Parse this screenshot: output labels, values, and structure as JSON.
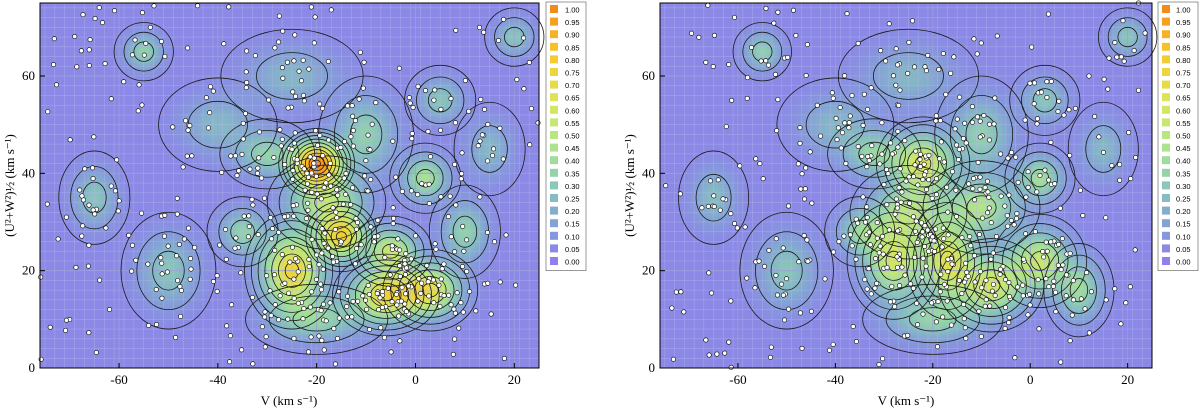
{
  "chart_data": [
    {
      "type": "heatmap",
      "panel": "left",
      "xlabel": "V (km s⁻¹)",
      "ylabel": "(U²+W²)½ (km s⁻¹)",
      "xlim": [
        -76,
        25
      ],
      "ylim": [
        0,
        75
      ],
      "x_ticks": [
        -60,
        -40,
        -20,
        0,
        20
      ],
      "y_ticks": [
        0,
        20,
        40,
        60
      ],
      "grid": true,
      "colorbar": {
        "levels": [
          "1.00",
          "0.95",
          "0.90",
          "0.85",
          "0.80",
          "0.75",
          "0.70",
          "0.65",
          "0.60",
          "0.55",
          "0.50",
          "0.45",
          "0.40",
          "0.35",
          "0.30",
          "0.25",
          "0.20",
          "0.15",
          "0.10",
          "0.05",
          "0.00"
        ],
        "colors": [
          "#f28a1c",
          "#f5a020",
          "#f6b226",
          "#f5c22c",
          "#f1cc33",
          "#ecd63c",
          "#e6dc48",
          "#dde256",
          "#d2e664",
          "#c6e872",
          "#b9e680",
          "#ade28f",
          "#a0dc9d",
          "#95d3ab",
          "#8cc8b7",
          "#86bcc2",
          "#84afcc",
          "#84a2d6",
          "#8796de",
          "#8b8ae5",
          "#8f80eb"
        ]
      },
      "density_peaks": [
        {
          "v": -20,
          "w": 42,
          "amplitude": 0.95,
          "sigma_v": 3.2,
          "sigma_w": 3.0
        },
        {
          "v": -25,
          "w": 20,
          "amplitude": 0.72,
          "sigma_v": 4.0,
          "sigma_w": 5.0
        },
        {
          "v": -15,
          "w": 27,
          "amplitude": 0.65,
          "sigma_v": 3.0,
          "sigma_w": 3.0
        },
        {
          "v": -6,
          "w": 15,
          "amplitude": 0.68,
          "sigma_v": 4.5,
          "sigma_w": 3.5
        },
        {
          "v": 3,
          "w": 16,
          "amplitude": 0.6,
          "sigma_v": 4.0,
          "sigma_w": 3.5
        },
        {
          "v": 2,
          "w": 39,
          "amplitude": 0.4,
          "sigma_v": 3.0,
          "sigma_w": 3.0
        },
        {
          "v": -5,
          "w": 24,
          "amplitude": 0.5,
          "sigma_v": 3.5,
          "sigma_w": 3.0
        },
        {
          "v": -18,
          "w": 34,
          "amplitude": 0.45,
          "sigma_v": 5.0,
          "sigma_w": 4.0
        },
        {
          "v": -30,
          "w": 44,
          "amplitude": 0.3,
          "sigma_v": 4.0,
          "sigma_w": 3.0
        },
        {
          "v": -10,
          "w": 48,
          "amplitude": 0.3,
          "sigma_v": 4.0,
          "sigma_w": 5.0
        },
        {
          "v": -35,
          "w": 28,
          "amplitude": 0.3,
          "sigma_v": 3.0,
          "sigma_w": 3.0
        },
        {
          "v": -55,
          "w": 65,
          "amplitude": 0.3,
          "sigma_v": 2.5,
          "sigma_w": 2.5
        },
        {
          "v": -65,
          "w": 35,
          "amplitude": 0.25,
          "sigma_v": 3.0,
          "sigma_w": 4.0
        },
        {
          "v": -50,
          "w": 20,
          "amplitude": 0.25,
          "sigma_v": 4.0,
          "sigma_w": 5.0
        },
        {
          "v": -20,
          "w": 10,
          "amplitude": 0.3,
          "sigma_v": 6.0,
          "sigma_w": 3.0
        },
        {
          "v": 10,
          "w": 28,
          "amplitude": 0.3,
          "sigma_v": 3.0,
          "sigma_w": 4.0
        },
        {
          "v": -40,
          "w": 50,
          "amplitude": 0.2,
          "sigma_v": 5.0,
          "sigma_w": 4.0
        },
        {
          "v": 5,
          "w": 55,
          "amplitude": 0.25,
          "sigma_v": 3.0,
          "sigma_w": 3.0
        },
        {
          "v": -25,
          "w": 60,
          "amplitude": 0.2,
          "sigma_v": 6.0,
          "sigma_w": 4.0
        },
        {
          "v": 15,
          "w": 45,
          "amplitude": 0.2,
          "sigma_v": 3.0,
          "sigma_w": 4.0
        },
        {
          "v": 20,
          "w": 68,
          "amplitude": 0.25,
          "sigma_v": 2.5,
          "sigma_w": 2.5
        }
      ]
    },
    {
      "type": "heatmap",
      "panel": "right",
      "xlabel": "V (km s⁻¹)",
      "ylabel": "(U²+W²)½ (km s⁻¹)",
      "xlim": [
        -76,
        25
      ],
      "ylim": [
        0,
        75
      ],
      "x_ticks": [
        -60,
        -40,
        -20,
        0,
        20
      ],
      "y_ticks": [
        0,
        20,
        40,
        60
      ],
      "grid": true,
      "colorbar": {
        "levels": [
          "1.00",
          "0.95",
          "0.90",
          "0.85",
          "0.80",
          "0.75",
          "0.70",
          "0.65",
          "0.60",
          "0.55",
          "0.50",
          "0.45",
          "0.40",
          "0.35",
          "0.30",
          "0.25",
          "0.20",
          "0.15",
          "0.10",
          "0.05",
          "0.00"
        ],
        "colors": [
          "#f28a1c",
          "#f5a020",
          "#f6b226",
          "#f5c22c",
          "#f1cc33",
          "#ecd63c",
          "#e6dc48",
          "#dde256",
          "#d2e664",
          "#c6e872",
          "#b9e680",
          "#ade28f",
          "#a0dc9d",
          "#95d3ab",
          "#8cc8b7",
          "#86bcc2",
          "#84afcc",
          "#84a2d6",
          "#8796de",
          "#8b8ae5",
          "#8f80eb"
        ]
      },
      "density_peaks": [
        {
          "v": -22,
          "w": 42,
          "amplitude": 0.58,
          "sigma_v": 4.0,
          "sigma_w": 4.0
        },
        {
          "v": -28,
          "w": 22,
          "amplitude": 0.55,
          "sigma_v": 4.0,
          "sigma_w": 5.0
        },
        {
          "v": -17,
          "w": 22,
          "amplitude": 0.58,
          "sigma_v": 3.5,
          "sigma_w": 5.0
        },
        {
          "v": -8,
          "w": 17,
          "amplitude": 0.55,
          "sigma_v": 4.5,
          "sigma_w": 4.0
        },
        {
          "v": 2,
          "w": 22,
          "amplitude": 0.5,
          "sigma_v": 4.0,
          "sigma_w": 4.0
        },
        {
          "v": 2,
          "w": 39,
          "amplitude": 0.38,
          "sigma_v": 3.0,
          "sigma_w": 3.0
        },
        {
          "v": -10,
          "w": 33,
          "amplitude": 0.42,
          "sigma_v": 5.0,
          "sigma_w": 4.0
        },
        {
          "v": -25,
          "w": 32,
          "amplitude": 0.4,
          "sigma_v": 5.0,
          "sigma_w": 4.0
        },
        {
          "v": -32,
          "w": 44,
          "amplitude": 0.3,
          "sigma_v": 4.0,
          "sigma_w": 3.0
        },
        {
          "v": -10,
          "w": 48,
          "amplitude": 0.3,
          "sigma_v": 4.0,
          "sigma_w": 5.0
        },
        {
          "v": -35,
          "w": 28,
          "amplitude": 0.28,
          "sigma_v": 3.0,
          "sigma_w": 3.0
        },
        {
          "v": -55,
          "w": 65,
          "amplitude": 0.3,
          "sigma_v": 2.5,
          "sigma_w": 2.5
        },
        {
          "v": -65,
          "w": 35,
          "amplitude": 0.22,
          "sigma_v": 3.0,
          "sigma_w": 4.0
        },
        {
          "v": -50,
          "w": 20,
          "amplitude": 0.25,
          "sigma_v": 4.0,
          "sigma_w": 5.0
        },
        {
          "v": -20,
          "w": 10,
          "amplitude": 0.3,
          "sigma_v": 6.0,
          "sigma_w": 3.0
        },
        {
          "v": 10,
          "w": 16,
          "amplitude": 0.35,
          "sigma_v": 3.0,
          "sigma_w": 4.0
        },
        {
          "v": -40,
          "w": 50,
          "amplitude": 0.2,
          "sigma_v": 5.0,
          "sigma_w": 4.0
        },
        {
          "v": 3,
          "w": 55,
          "amplitude": 0.25,
          "sigma_v": 3.0,
          "sigma_w": 3.0
        },
        {
          "v": -25,
          "w": 60,
          "amplitude": 0.2,
          "sigma_v": 6.0,
          "sigma_w": 4.0
        },
        {
          "v": 15,
          "w": 45,
          "amplitude": 0.2,
          "sigma_v": 3.0,
          "sigma_w": 4.0
        },
        {
          "v": 20,
          "w": 68,
          "amplitude": 0.25,
          "sigma_v": 2.5,
          "sigma_w": 2.5
        }
      ]
    }
  ]
}
